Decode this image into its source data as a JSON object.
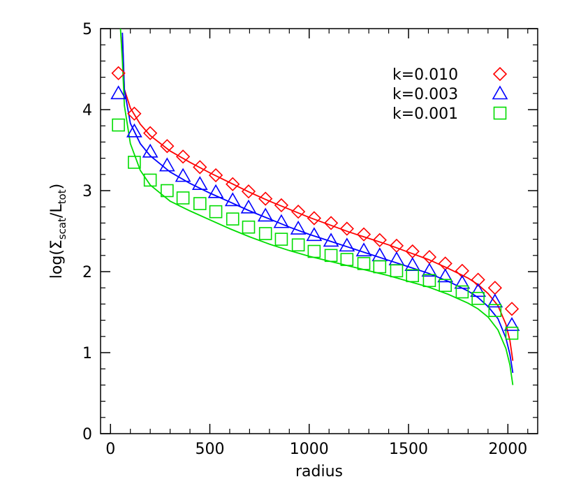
{
  "chart_data": {
    "type": "scatter",
    "xlabel": "radius",
    "ylabel_parts": {
      "prefix": "log(",
      "sigma": "Σ",
      "num_sub": "scat",
      "slash": "/",
      "den": "L",
      "den_sub": "tot",
      "suffix": ")"
    },
    "xlim": [
      -50,
      2150
    ],
    "ylim": [
      0,
      5
    ],
    "x_ticks": [
      0,
      500,
      1000,
      1500,
      2000
    ],
    "y_ticks": [
      0,
      1,
      2,
      3,
      4,
      5
    ],
    "x_tick_labels": [
      "0",
      "500",
      "1000",
      "1500",
      "2000"
    ],
    "y_tick_labels": [
      "0",
      "1",
      "2",
      "3",
      "4",
      "5"
    ],
    "legend_position": "top-right",
    "grid": false,
    "series": [
      {
        "name": "k=0.010",
        "color": "#ff0000",
        "marker": "diamond",
        "points": [
          [
            40,
            4.45
          ],
          [
            120,
            3.95
          ],
          [
            200,
            3.71
          ],
          [
            285,
            3.55
          ],
          [
            365,
            3.42
          ],
          [
            450,
            3.29
          ],
          [
            530,
            3.19
          ],
          [
            615,
            3.08
          ],
          [
            695,
            2.99
          ],
          [
            780,
            2.9
          ],
          [
            860,
            2.82
          ],
          [
            945,
            2.74
          ],
          [
            1025,
            2.66
          ],
          [
            1110,
            2.6
          ],
          [
            1190,
            2.53
          ],
          [
            1275,
            2.46
          ],
          [
            1355,
            2.39
          ],
          [
            1440,
            2.32
          ],
          [
            1520,
            2.25
          ],
          [
            1605,
            2.18
          ],
          [
            1685,
            2.1
          ],
          [
            1770,
            2.01
          ],
          [
            1850,
            1.9
          ],
          [
            1935,
            1.8
          ],
          [
            2020,
            1.54
          ]
        ],
        "curve": [
          [
            60,
            4.9
          ],
          [
            70,
            4.25
          ],
          [
            100,
            4.02
          ],
          [
            150,
            3.82
          ],
          [
            200,
            3.68
          ],
          [
            300,
            3.49
          ],
          [
            400,
            3.35
          ],
          [
            500,
            3.22
          ],
          [
            600,
            3.1
          ],
          [
            700,
            2.98
          ],
          [
            800,
            2.87
          ],
          [
            900,
            2.77
          ],
          [
            1000,
            2.67
          ],
          [
            1100,
            2.58
          ],
          [
            1200,
            2.49
          ],
          [
            1300,
            2.41
          ],
          [
            1400,
            2.33
          ],
          [
            1500,
            2.24
          ],
          [
            1600,
            2.15
          ],
          [
            1700,
            2.04
          ],
          [
            1800,
            1.92
          ],
          [
            1850,
            1.84
          ],
          [
            1900,
            1.73
          ],
          [
            1950,
            1.58
          ],
          [
            1990,
            1.35
          ],
          [
            2010,
            1.15
          ],
          [
            2025,
            0.9
          ]
        ]
      },
      {
        "name": "k=0.003",
        "color": "#0000ff",
        "marker": "triangle",
        "points": [
          [
            40,
            4.2
          ],
          [
            120,
            3.73
          ],
          [
            200,
            3.48
          ],
          [
            285,
            3.31
          ],
          [
            365,
            3.18
          ],
          [
            450,
            3.08
          ],
          [
            530,
            2.98
          ],
          [
            615,
            2.88
          ],
          [
            695,
            2.79
          ],
          [
            780,
            2.69
          ],
          [
            860,
            2.61
          ],
          [
            945,
            2.53
          ],
          [
            1025,
            2.45
          ],
          [
            1110,
            2.38
          ],
          [
            1190,
            2.32
          ],
          [
            1275,
            2.26
          ],
          [
            1355,
            2.2
          ],
          [
            1440,
            2.15
          ],
          [
            1520,
            2.08
          ],
          [
            1605,
            2.01
          ],
          [
            1685,
            1.94
          ],
          [
            1770,
            1.86
          ],
          [
            1850,
            1.76
          ],
          [
            1935,
            1.63
          ],
          [
            2020,
            1.34
          ]
        ],
        "curve": [
          [
            60,
            4.95
          ],
          [
            70,
            4.25
          ],
          [
            100,
            3.83
          ],
          [
            150,
            3.58
          ],
          [
            200,
            3.43
          ],
          [
            300,
            3.23
          ],
          [
            400,
            3.09
          ],
          [
            500,
            2.97
          ],
          [
            600,
            2.86
          ],
          [
            700,
            2.75
          ],
          [
            800,
            2.65
          ],
          [
            900,
            2.55
          ],
          [
            1000,
            2.46
          ],
          [
            1100,
            2.38
          ],
          [
            1200,
            2.3
          ],
          [
            1300,
            2.22
          ],
          [
            1400,
            2.14
          ],
          [
            1500,
            2.06
          ],
          [
            1600,
            1.98
          ],
          [
            1700,
            1.88
          ],
          [
            1800,
            1.76
          ],
          [
            1850,
            1.68
          ],
          [
            1900,
            1.57
          ],
          [
            1950,
            1.42
          ],
          [
            1990,
            1.18
          ],
          [
            2010,
            0.98
          ],
          [
            2025,
            0.75
          ]
        ]
      },
      {
        "name": "k=0.001",
        "color": "#00dd00",
        "marker": "square",
        "points": [
          [
            40,
            3.81
          ],
          [
            120,
            3.35
          ],
          [
            200,
            3.13
          ],
          [
            285,
            3.0
          ],
          [
            365,
            2.91
          ],
          [
            450,
            2.84
          ],
          [
            530,
            2.74
          ],
          [
            615,
            2.65
          ],
          [
            695,
            2.55
          ],
          [
            780,
            2.47
          ],
          [
            860,
            2.4
          ],
          [
            945,
            2.33
          ],
          [
            1025,
            2.25
          ],
          [
            1110,
            2.2
          ],
          [
            1190,
            2.15
          ],
          [
            1275,
            2.1
          ],
          [
            1355,
            2.06
          ],
          [
            1440,
            2.01
          ],
          [
            1520,
            1.95
          ],
          [
            1605,
            1.89
          ],
          [
            1685,
            1.83
          ],
          [
            1770,
            1.75
          ],
          [
            1850,
            1.67
          ],
          [
            1935,
            1.52
          ],
          [
            2020,
            1.24
          ]
        ],
        "curve": [
          [
            50,
            5.0
          ],
          [
            60,
            4.6
          ],
          [
            70,
            4.05
          ],
          [
            100,
            3.58
          ],
          [
            150,
            3.25
          ],
          [
            200,
            3.07
          ],
          [
            300,
            2.87
          ],
          [
            400,
            2.75
          ],
          [
            500,
            2.64
          ],
          [
            600,
            2.53
          ],
          [
            700,
            2.43
          ],
          [
            800,
            2.34
          ],
          [
            900,
            2.26
          ],
          [
            1000,
            2.19
          ],
          [
            1100,
            2.13
          ],
          [
            1200,
            2.07
          ],
          [
            1300,
            2.01
          ],
          [
            1400,
            1.95
          ],
          [
            1500,
            1.88
          ],
          [
            1600,
            1.81
          ],
          [
            1700,
            1.72
          ],
          [
            1800,
            1.61
          ],
          [
            1850,
            1.54
          ],
          [
            1900,
            1.44
          ],
          [
            1950,
            1.28
          ],
          [
            1990,
            1.05
          ],
          [
            2010,
            0.85
          ],
          [
            2025,
            0.6
          ]
        ]
      }
    ]
  }
}
